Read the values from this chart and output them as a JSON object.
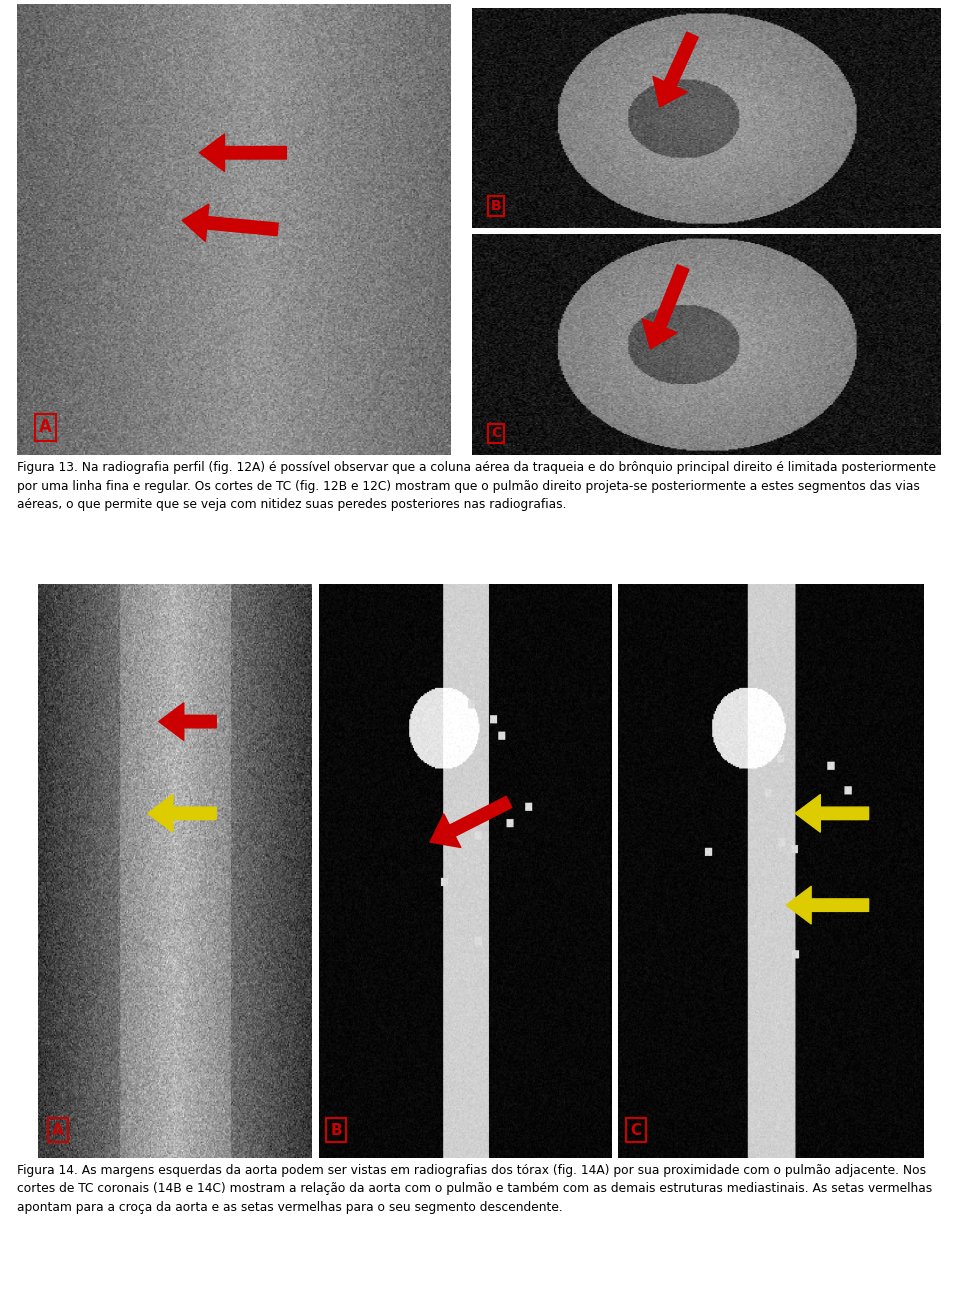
{
  "background_color": "#ffffff",
  "fig_width": 9.6,
  "fig_height": 12.89,
  "caption13": "Figura 13. Na radiografia perfil (fig. 12A) é possível observar que a coluna aérea da traqueia e do brônquio principal direito é limitada posteriormente por uma linha fina e regular. Os cortes de TC (fig. 12B e 12C) mostram que o pulmão direito projeta-se posteriormente a estes segmentos das vias aéreas, o que permite que se veja com nitidez suas peredes posteriores nas radiografias.",
  "caption14": "Figura 14. As margens esquerdas da aorta podem ser vistas em radiografias dos tórax (fig. 14A) por sua proximidade com o pulmão adjacente. Nos cortes de TC coronais (14B e 14C) mostram a relação da aorta com o pulmão e também com as demais estruturas mediastinais. As setas vermelhas apontam para a croça da aorta e as setas vermelhas para o seu segmento descendente.",
  "label_A": "A",
  "label_B": "B",
  "label_C": "C",
  "arrow_color_red": "#cc0000",
  "arrow_color_yellow": "#ddcc00",
  "label_box_color": "#cc0000",
  "label_text_color": "#cc0000",
  "img_bg": "#888888"
}
